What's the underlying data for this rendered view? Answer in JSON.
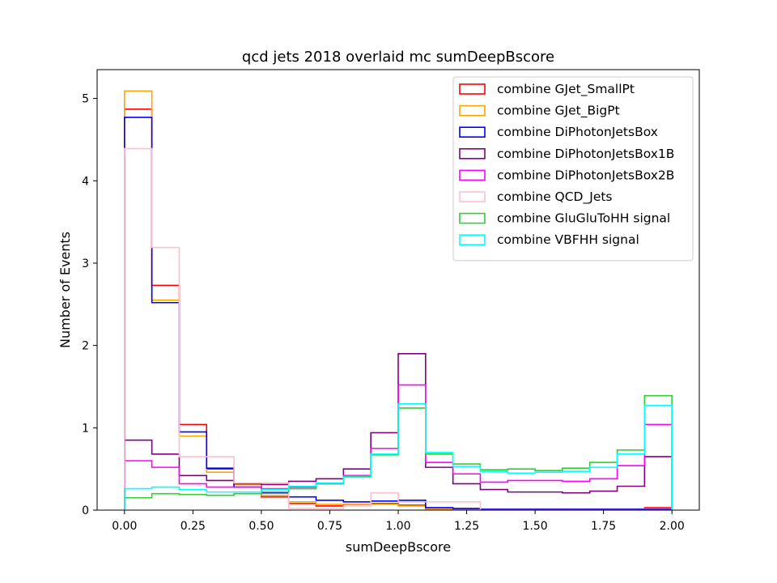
{
  "chart_data": {
    "type": "histogram",
    "title": "qcd jets 2018 overlaid mc sumDeepBscore",
    "xlabel": "sumDeepBscore",
    "ylabel": "Number of Events",
    "xlim": [
      -0.1,
      2.1
    ],
    "ylim": [
      0,
      5.35
    ],
    "xticks": [
      "0.00",
      "0.25",
      "0.50",
      "0.75",
      "1.00",
      "1.25",
      "1.50",
      "1.75",
      "2.00"
    ],
    "yticks": [
      "0",
      "1",
      "2",
      "3",
      "4",
      "5"
    ],
    "grid": false,
    "legend_position": "top-right",
    "bin_edges": [
      0.0,
      0.1,
      0.2,
      0.3,
      0.4,
      0.5,
      0.6,
      0.7,
      0.8,
      0.9,
      1.0,
      1.1,
      1.2,
      1.3,
      1.4,
      1.5,
      1.6,
      1.7,
      1.8,
      1.9,
      2.0
    ],
    "series": [
      {
        "name": "combine GJet_SmallPt",
        "color": "#ff0000",
        "values": [
          4.87,
          2.73,
          1.04,
          0.5,
          0.32,
          0.16,
          0.08,
          0.05,
          0.07,
          0.08,
          0.06,
          0.01,
          0.01,
          0.01,
          0.01,
          0.01,
          0.01,
          0.01,
          0.01,
          0.03
        ]
      },
      {
        "name": "combine GJet_BigPt",
        "color": "#ffa500",
        "values": [
          5.09,
          2.55,
          0.9,
          0.46,
          0.31,
          0.18,
          0.1,
          0.07,
          0.07,
          0.07,
          0.05,
          0.01,
          0.01,
          0.01,
          0.01,
          0.01,
          0.01,
          0.01,
          0.01,
          0.02
        ]
      },
      {
        "name": "combine DiPhotonJetsBox",
        "color": "#0000ff",
        "values": [
          4.77,
          2.52,
          0.95,
          0.51,
          0.28,
          0.21,
          0.16,
          0.12,
          0.1,
          0.11,
          0.12,
          0.03,
          0.02,
          0.01,
          0.01,
          0.01,
          0.01,
          0.01,
          0.01,
          0.01
        ]
      },
      {
        "name": "combine DiPhotonJetsBox1B",
        "color": "#800080",
        "values": [
          0.85,
          0.68,
          0.42,
          0.36,
          0.32,
          0.31,
          0.35,
          0.38,
          0.5,
          0.94,
          1.9,
          0.52,
          0.32,
          0.25,
          0.22,
          0.22,
          0.21,
          0.23,
          0.29,
          0.65
        ]
      },
      {
        "name": "combine DiPhotonJetsBox2B",
        "color": "#ff00ff",
        "values": [
          0.6,
          0.52,
          0.32,
          0.28,
          0.28,
          0.26,
          0.28,
          0.32,
          0.42,
          0.75,
          1.52,
          0.58,
          0.44,
          0.34,
          0.36,
          0.36,
          0.35,
          0.38,
          0.54,
          1.04
        ]
      },
      {
        "name": "combine QCD_Jets",
        "color": "#ffc0cb",
        "values": [
          4.39,
          3.19,
          0.65,
          0.65,
          0.33,
          0.33,
          0.02,
          0.02,
          0.05,
          0.21,
          0.1,
          0.1,
          0.1,
          0.0,
          0.0,
          0.0,
          0.0,
          0.0,
          0.0,
          0.0
        ]
      },
      {
        "name": "combine GluGluToHH signal",
        "color": "#32cd32",
        "values": [
          0.15,
          0.2,
          0.19,
          0.18,
          0.2,
          0.22,
          0.26,
          0.32,
          0.41,
          0.67,
          1.24,
          0.68,
          0.56,
          0.49,
          0.5,
          0.48,
          0.51,
          0.58,
          0.73,
          1.39
        ]
      },
      {
        "name": "combine VBFHH signal",
        "color": "#00ffff",
        "values": [
          0.26,
          0.28,
          0.25,
          0.22,
          0.22,
          0.25,
          0.29,
          0.33,
          0.4,
          0.68,
          1.29,
          0.7,
          0.53,
          0.47,
          0.45,
          0.46,
          0.47,
          0.52,
          0.68,
          1.27
        ]
      }
    ]
  }
}
